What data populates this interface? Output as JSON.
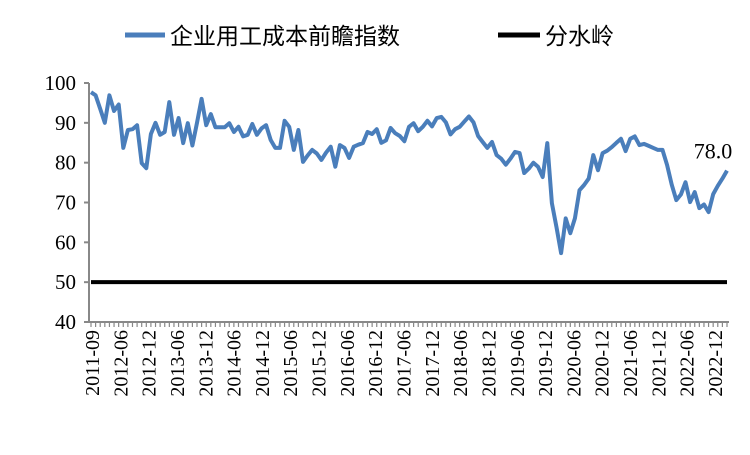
{
  "chart_data": {
    "type": "line",
    "title": "",
    "xlabel": "",
    "ylabel": "",
    "ylim": [
      40,
      100
    ],
    "yticks": [
      40,
      50,
      60,
      70,
      80,
      90,
      100
    ],
    "x_start": "2011-09",
    "x_end": "2023-03",
    "xtick_labels": [
      "2011-09",
      "2012-06",
      "2012-12",
      "2013-06",
      "2013-12",
      "2014-06",
      "2014-12",
      "2015-06",
      "2015-12",
      "2016-06",
      "2016-12",
      "2017-06",
      "2017-12",
      "2018-06",
      "2018-12",
      "2019-06",
      "2019-12",
      "2020-06",
      "2020-12",
      "2021-06",
      "2021-12",
      "2022-06",
      "2022-12"
    ],
    "grid": false,
    "legend_position": "top",
    "series": [
      {
        "name": "企业用工成本前瞻指数",
        "color": "#4a7ebb",
        "values": [
          97.7,
          96.9,
          93.5,
          90.0,
          96.9,
          93.0,
          94.6,
          83.7,
          88.2,
          88.4,
          89.4,
          79.9,
          78.6,
          87.2,
          90.0,
          87.0,
          87.7,
          95.2,
          87.0,
          91.2,
          84.9,
          89.9,
          84.3,
          90.0,
          96.0,
          89.4,
          92.2,
          88.9,
          88.9,
          88.9,
          89.9,
          87.7,
          89.0,
          86.6,
          87.0,
          89.7,
          87.0,
          88.6,
          89.4,
          85.7,
          83.7,
          83.7,
          90.5,
          89.0,
          83.2,
          88.2,
          80.2,
          81.8,
          83.2,
          82.3,
          80.7,
          82.5,
          84.0,
          79.0,
          84.4,
          83.7,
          81.2,
          84.0,
          84.5,
          84.9,
          87.7,
          87.2,
          88.4,
          85.0,
          85.6,
          88.7,
          87.4,
          86.7,
          85.4,
          89.0,
          89.9,
          87.9,
          89.0,
          90.5,
          89.1,
          91.2,
          91.5,
          90.1,
          87.1,
          88.4,
          89.0,
          90.3,
          91.6,
          90.1,
          86.7,
          85.2,
          83.7,
          85.2,
          81.9,
          81.0,
          79.5,
          81.0,
          82.7,
          82.4,
          77.4,
          78.5,
          80.0,
          79.0,
          76.4,
          84.9,
          69.8,
          63.8,
          57.3,
          66.0,
          62.3,
          66.0,
          73.1,
          74.4,
          76.0,
          81.9,
          78.1,
          82.4,
          83.0,
          83.9,
          85.0,
          86.0,
          82.9,
          86.0,
          86.6,
          84.4,
          84.7,
          84.2,
          83.7,
          83.2,
          83.2,
          79.4,
          74.5,
          70.6,
          72.0,
          75.1,
          70.1,
          72.6,
          68.6,
          69.5,
          67.6,
          72.1,
          74.2,
          76.0,
          78.0
        ]
      },
      {
        "name": "分水岭",
        "color": "#000000",
        "value": 50
      }
    ],
    "annotations": [
      {
        "text": "78.0",
        "at": "2023-03"
      }
    ]
  }
}
